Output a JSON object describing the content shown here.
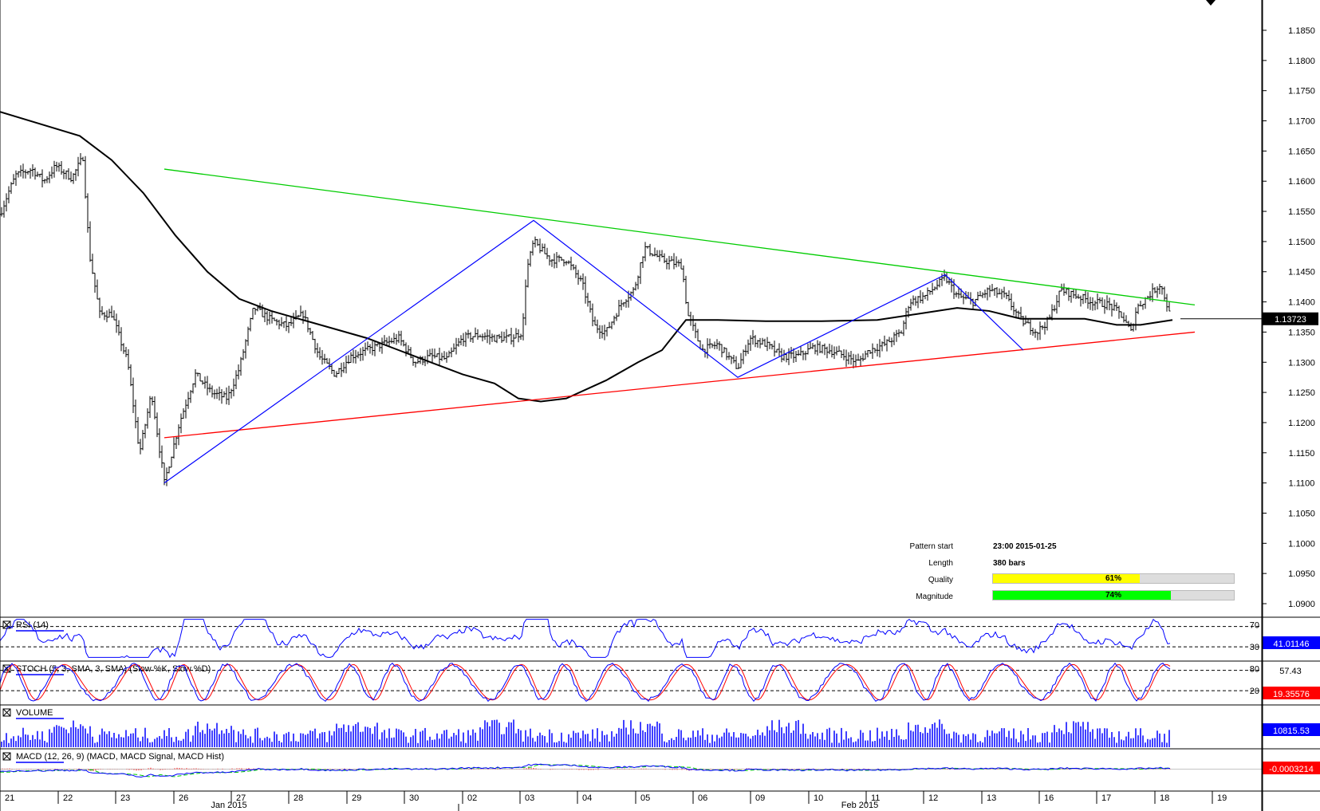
{
  "chart_data": {
    "type": "candlestick",
    "instrument_price_label": "1.13723",
    "price_axis": {
      "ticks": [
        "1.1850",
        "1.1800",
        "1.1750",
        "1.1700",
        "1.1650",
        "1.1600",
        "1.1550",
        "1.1500",
        "1.1450",
        "1.1400",
        "1.1350",
        "1.1300",
        "1.1250",
        "1.1200",
        "1.1150",
        "1.1100",
        "1.1050",
        "1.1000",
        "1.0950",
        "1.0900"
      ],
      "range": [
        1.0875,
        1.1875
      ]
    },
    "date_axis": {
      "days": [
        "21",
        "22",
        "23",
        "26",
        "27",
        "28",
        "29",
        "30",
        "02",
        "03",
        "04",
        "05",
        "06",
        "09",
        "10",
        "11",
        "12",
        "13",
        "16",
        "17",
        "18",
        "19"
      ],
      "months": [
        "Jan 2015",
        "Feb 2015"
      ]
    },
    "price_path": [
      [
        0,
        1.1545
      ],
      [
        10,
        1.158
      ],
      [
        20,
        1.161
      ],
      [
        40,
        1.162
      ],
      [
        55,
        1.16
      ],
      [
        70,
        1.1625
      ],
      [
        90,
        1.1605
      ],
      [
        104,
        1.164
      ],
      [
        112,
        1.148
      ],
      [
        125,
        1.138
      ],
      [
        140,
        1.138
      ],
      [
        160,
        1.13
      ],
      [
        175,
        1.115
      ],
      [
        190,
        1.125
      ],
      [
        206,
        1.11
      ],
      [
        225,
        1.12
      ],
      [
        245,
        1.128
      ],
      [
        265,
        1.125
      ],
      [
        285,
        1.124
      ],
      [
        300,
        1.129
      ],
      [
        318,
        1.139
      ],
      [
        340,
        1.137
      ],
      [
        360,
        1.136
      ],
      [
        380,
        1.138
      ],
      [
        400,
        1.131
      ],
      [
        420,
        1.128
      ],
      [
        440,
        1.131
      ],
      [
        460,
        1.132
      ],
      [
        480,
        1.133
      ],
      [
        500,
        1.134
      ],
      [
        520,
        1.13
      ],
      [
        540,
        1.131
      ],
      [
        560,
        1.1305
      ],
      [
        580,
        1.134
      ],
      [
        600,
        1.1345
      ],
      [
        620,
        1.134
      ],
      [
        640,
        1.134
      ],
      [
        655,
        1.135
      ],
      [
        660,
        1.145
      ],
      [
        669,
        1.15
      ],
      [
        690,
        1.147
      ],
      [
        710,
        1.147
      ],
      [
        730,
        1.143
      ],
      [
        745,
        1.136
      ],
      [
        760,
        1.135
      ],
      [
        780,
        1.14
      ],
      [
        795,
        1.142
      ],
      [
        808,
        1.149
      ],
      [
        830,
        1.147
      ],
      [
        855,
        1.146
      ],
      [
        862,
        1.138
      ],
      [
        880,
        1.132
      ],
      [
        900,
        1.133
      ],
      [
        925,
        1.129
      ],
      [
        940,
        1.134
      ],
      [
        960,
        1.133
      ],
      [
        980,
        1.131
      ],
      [
        1000,
        1.131
      ],
      [
        1020,
        1.1325
      ],
      [
        1040,
        1.132
      ],
      [
        1060,
        1.131
      ],
      [
        1075,
        1.13
      ],
      [
        1090,
        1.132
      ],
      [
        1110,
        1.133
      ],
      [
        1130,
        1.135
      ],
      [
        1140,
        1.14
      ],
      [
        1160,
        1.141
      ],
      [
        1185,
        1.144
      ],
      [
        1200,
        1.141
      ],
      [
        1220,
        1.14
      ],
      [
        1240,
        1.142
      ],
      [
        1260,
        1.141
      ],
      [
        1280,
        1.137
      ],
      [
        1300,
        1.135
      ],
      [
        1315,
        1.137
      ],
      [
        1330,
        1.142
      ],
      [
        1350,
        1.141
      ],
      [
        1370,
        1.14
      ],
      [
        1390,
        1.1395
      ],
      [
        1405,
        1.138
      ],
      [
        1418,
        1.135
      ],
      [
        1425,
        1.139
      ],
      [
        1440,
        1.141
      ],
      [
        1455,
        1.143
      ],
      [
        1462,
        1.14
      ],
      [
        1468,
        1.1372
      ]
    ],
    "sma_path": [
      [
        0,
        1.1715
      ],
      [
        50,
        1.1695
      ],
      [
        100,
        1.1675
      ],
      [
        140,
        1.1635
      ],
      [
        180,
        1.158
      ],
      [
        220,
        1.151
      ],
      [
        260,
        1.145
      ],
      [
        300,
        1.1405
      ],
      [
        340,
        1.1385
      ],
      [
        380,
        1.137
      ],
      [
        420,
        1.1355
      ],
      [
        460,
        1.134
      ],
      [
        500,
        1.132
      ],
      [
        540,
        1.13
      ],
      [
        580,
        1.128
      ],
      [
        620,
        1.1265
      ],
      [
        650,
        1.124
      ],
      [
        678,
        1.1235
      ],
      [
        710,
        1.124
      ],
      [
        760,
        1.127
      ],
      [
        800,
        1.13
      ],
      [
        830,
        1.132
      ],
      [
        860,
        1.137
      ],
      [
        900,
        1.137
      ],
      [
        960,
        1.1368
      ],
      [
        1030,
        1.1368
      ],
      [
        1100,
        1.137
      ],
      [
        1150,
        1.138
      ],
      [
        1200,
        1.139
      ],
      [
        1240,
        1.1385
      ],
      [
        1280,
        1.1372
      ],
      [
        1320,
        1.1372
      ],
      [
        1360,
        1.1372
      ],
      [
        1400,
        1.1362
      ],
      [
        1430,
        1.1362
      ],
      [
        1470,
        1.137
      ]
    ],
    "trendlines": {
      "resistance": {
        "color": "#00cc00",
        "points": [
          [
            206,
            1.162
          ],
          [
            1498,
            1.1395
          ]
        ]
      },
      "support": {
        "color": "#ff0000",
        "points": [
          [
            206,
            1.1175
          ],
          [
            1498,
            1.135
          ]
        ]
      }
    },
    "zigzag": {
      "color": "#0000ff",
      "points": [
        [
          206,
          1.11
        ],
        [
          669,
          1.1535
        ],
        [
          925,
          1.1275
        ],
        [
          1185,
          1.1445
        ],
        [
          1283,
          1.132
        ]
      ]
    },
    "pattern_info": {
      "rows": [
        {
          "label": "Pattern start",
          "value": "23:00 2015-01-25"
        },
        {
          "label": "Length",
          "value": "380 bars"
        }
      ],
      "quality": {
        "label": "Quality",
        "value": "61%",
        "fraction": 0.61,
        "color": "#ffff00"
      },
      "magnitude": {
        "label": "Magnitude",
        "value": "74%",
        "fraction": 0.74,
        "color": "#00ff00"
      }
    },
    "panels": [
      {
        "key": "rsi",
        "title": "RSI (14)",
        "levels": [
          "70",
          "30"
        ],
        "readout": "41.01146",
        "readout_color": "#0000ff"
      },
      {
        "key": "stoch",
        "title": "STOCH (5, 3, SMA, 3, SMA) (Slow %K, Slow %D)",
        "levels": [
          "80",
          "20"
        ],
        "extra_level": "57.43",
        "readout": "19.35576",
        "readout_color": "#ff0000"
      },
      {
        "key": "volume",
        "title": "VOLUME",
        "readout": "10815.53",
        "readout_color": "#0000ff"
      },
      {
        "key": "macd",
        "title": "MACD (12, 26, 9) (MACD, MACD Signal, MACD Hist)",
        "readout": "-0.0003214",
        "readout_color": "#ff0000"
      }
    ],
    "colors": {
      "price": "#000000",
      "sma": "#000000",
      "indicator_main": "#0000ff",
      "indicator_signal": "#ff0000",
      "macd_signal": "#00cc00",
      "volume": "#0000ff"
    }
  }
}
